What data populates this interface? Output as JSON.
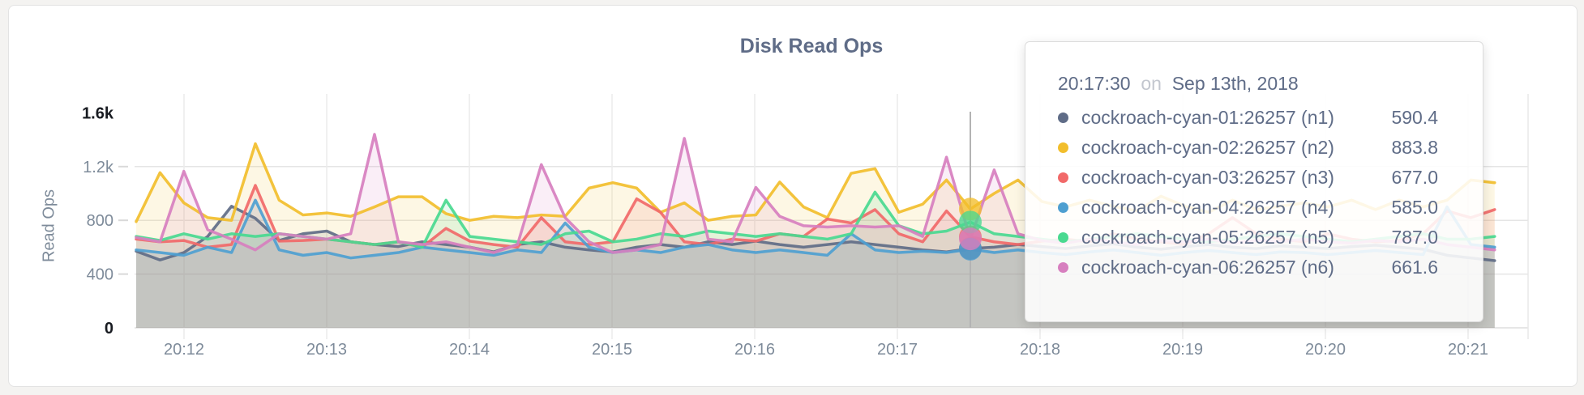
{
  "chart_data": {
    "type": "line",
    "title": "Disk Read Ops",
    "ylabel": "Read Ops",
    "ylim": [
      0,
      1600
    ],
    "grid": true,
    "x_start": "20:11:40",
    "x_step_seconds": 10,
    "x_ticks": [
      "20:12",
      "20:13",
      "20:14",
      "20:15",
      "20:16",
      "20:17",
      "20:18",
      "20:19",
      "20:20",
      "20:21"
    ],
    "y_ticks": [
      {
        "value": 0,
        "label": "0",
        "emphasis": true,
        "grid": false
      },
      {
        "value": 400,
        "label": "400",
        "emphasis": false,
        "grid": true
      },
      {
        "value": 800,
        "label": "800",
        "emphasis": false,
        "grid": true
      },
      {
        "value": 1200,
        "label": "1.2k",
        "emphasis": false,
        "grid": true
      },
      {
        "value": 1600,
        "label": "1.6k",
        "emphasis": true,
        "grid": false
      }
    ],
    "hover_index": 35,
    "series": [
      {
        "name": "cockroach-cyan-01:26257 (n1)",
        "color": "#5F6C87",
        "values": [
          570,
          505,
          560,
          680,
          905,
          815,
          650,
          700,
          720,
          640,
          620,
          605,
          640,
          620,
          600,
          565,
          620,
          640,
          600,
          580,
          565,
          600,
          620,
          600,
          640,
          620,
          645,
          620,
          600,
          620,
          640,
          620,
          600,
          580,
          565,
          590.4,
          600,
          620,
          605,
          590,
          610,
          625,
          600,
          585,
          605,
          620,
          600,
          590,
          610,
          600,
          590,
          605,
          615,
          600,
          585,
          540,
          520,
          500
        ]
      },
      {
        "name": "cockroach-cyan-02:26257 (n2)",
        "color": "#F2BE2C",
        "values": [
          790,
          1155,
          930,
          820,
          800,
          1370,
          950,
          840,
          855,
          830,
          900,
          975,
          975,
          850,
          800,
          830,
          820,
          840,
          830,
          1040,
          1080,
          1040,
          860,
          930,
          800,
          830,
          840,
          1085,
          900,
          820,
          1150,
          1185,
          860,
          920,
          1100,
          883.8,
          1000,
          1100,
          940,
          900,
          950,
          905,
          870,
          980,
          905,
          860,
          950,
          880,
          905,
          930,
          900,
          950,
          880,
          950,
          900,
          950,
          1100,
          1080
        ]
      },
      {
        "name": "cockroach-cyan-03:26257 (n3)",
        "color": "#F16969",
        "values": [
          660,
          640,
          650,
          600,
          620,
          1060,
          645,
          650,
          660,
          640,
          620,
          640,
          600,
          740,
          645,
          620,
          600,
          820,
          640,
          620,
          640,
          960,
          860,
          640,
          620,
          660,
          645,
          700,
          680,
          810,
          780,
          880,
          700,
          640,
          870,
          677,
          640,
          620,
          645,
          660,
          640,
          700,
          660,
          640,
          620,
          700,
          820,
          700,
          660,
          640,
          700,
          660,
          640,
          650,
          700,
          870,
          820,
          880
        ]
      },
      {
        "name": "cockroach-cyan-04:26257 (n4)",
        "color": "#4E9FD1",
        "values": [
          580,
          560,
          540,
          600,
          560,
          950,
          580,
          540,
          560,
          520,
          540,
          560,
          600,
          580,
          560,
          540,
          580,
          560,
          780,
          600,
          560,
          580,
          560,
          600,
          620,
          580,
          560,
          580,
          560,
          540,
          700,
          580,
          560,
          570,
          560,
          585,
          560,
          580,
          560,
          545,
          565,
          580,
          560,
          540,
          560,
          575,
          560,
          545,
          565,
          560,
          545,
          560,
          575,
          560,
          545,
          900,
          620,
          600
        ]
      },
      {
        "name": "cockroach-cyan-05:26257 (n5)",
        "color": "#49D990",
        "values": [
          680,
          650,
          700,
          660,
          700,
          680,
          700,
          680,
          660,
          640,
          620,
          640,
          600,
          950,
          680,
          660,
          640,
          620,
          700,
          720,
          640,
          660,
          700,
          680,
          720,
          700,
          680,
          700,
          680,
          660,
          700,
          1010,
          760,
          700,
          720,
          787,
          700,
          680,
          660,
          640,
          660,
          680,
          700,
          680,
          660,
          640,
          660,
          680,
          700,
          680,
          660,
          640,
          660,
          680,
          700,
          660,
          660,
          680
        ]
      },
      {
        "name": "cockroach-cyan-06:26257 (n6)",
        "color": "#D77FBF",
        "values": [
          672,
          640,
          1165,
          730,
          660,
          580,
          700,
          680,
          660,
          700,
          1440,
          640,
          620,
          640,
          600,
          560,
          620,
          1215,
          820,
          640,
          560,
          580,
          620,
          1410,
          660,
          640,
          1045,
          830,
          760,
          750,
          760,
          750,
          760,
          680,
          1270,
          661.6,
          1175,
          700,
          650,
          630,
          660,
          640,
          620,
          650,
          640,
          660,
          630,
          650,
          640,
          660,
          640,
          630,
          650,
          640,
          660,
          620,
          600,
          580
        ]
      }
    ]
  },
  "tooltip": {
    "time": "20:17:30",
    "conjunction": "on",
    "date": "Sep 13th, 2018",
    "rows": [
      {
        "label": "cockroach-cyan-01:26257 (n1)",
        "value": "590.4",
        "color": "#5F6C87"
      },
      {
        "label": "cockroach-cyan-02:26257 (n2)",
        "value": "883.8",
        "color": "#F2BE2C"
      },
      {
        "label": "cockroach-cyan-03:26257 (n3)",
        "value": "677.0",
        "color": "#F16969"
      },
      {
        "label": "cockroach-cyan-04:26257 (n4)",
        "value": "585.0",
        "color": "#4E9FD1"
      },
      {
        "label": "cockroach-cyan-05:26257 (n5)",
        "value": "787.0",
        "color": "#49D990"
      },
      {
        "label": "cockroach-cyan-06:26257 (n6)",
        "value": "661.6",
        "color": "#D77FBF"
      }
    ]
  },
  "colors": {
    "page_background": "#f4f3f1",
    "card_background": "#ffffff",
    "grid_line": "#e6e6e6",
    "hover_guideline": "#b3b3b3",
    "axis_text": "#7e8b9a",
    "title_text": "#5f6c87"
  }
}
